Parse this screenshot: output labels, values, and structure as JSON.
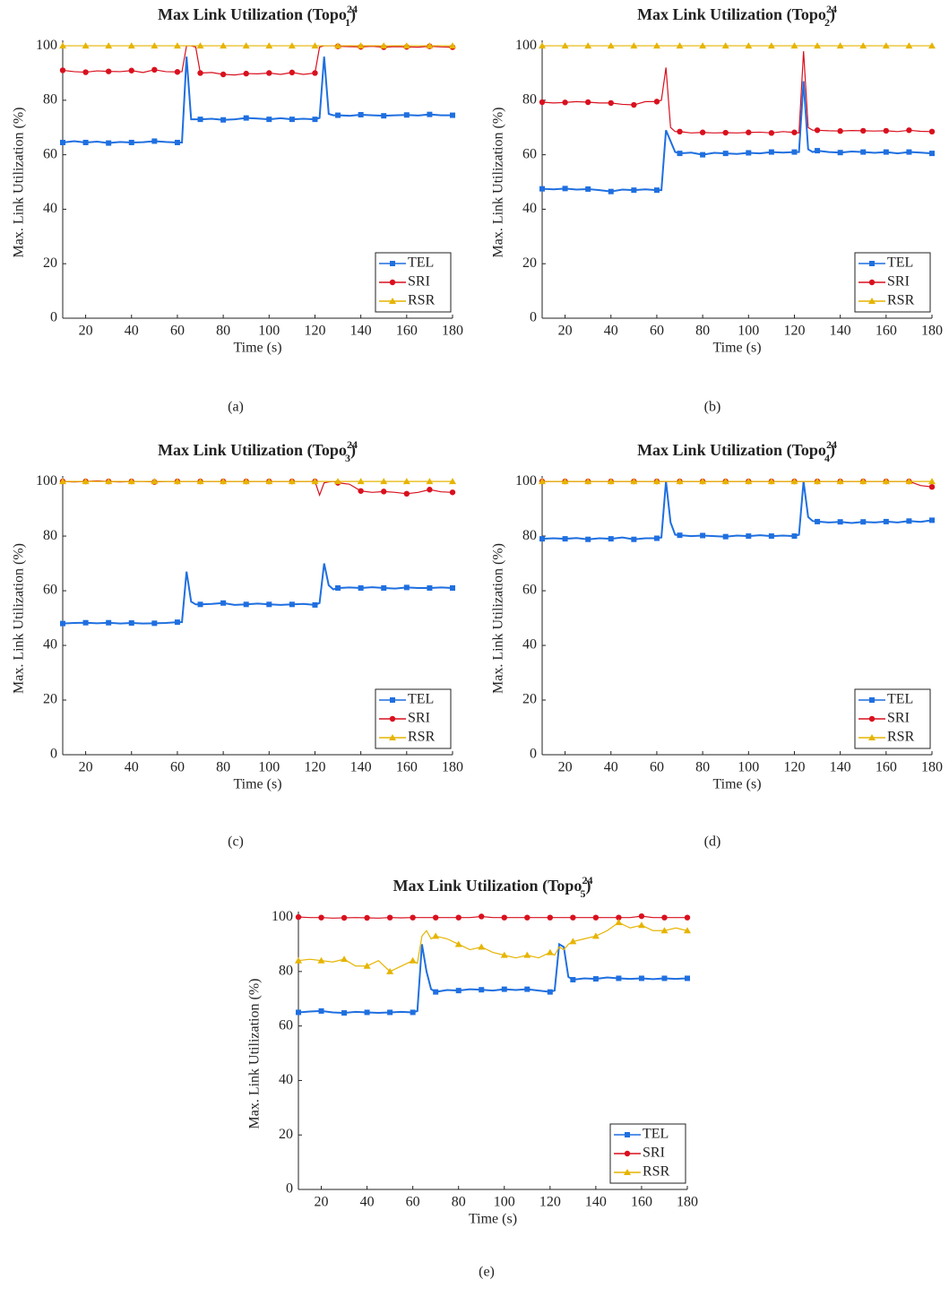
{
  "chart_data": [
    {
      "type": "line",
      "title": {
        "text": "Max Link Utilization (Topo",
        "sub": "1",
        "sup": "24",
        "close": ")"
      },
      "x_label": "Time (s)",
      "y_label": "Max. Link Utilization (%)",
      "caption": "(a)",
      "xlim": [
        10,
        180
      ],
      "ylim": [
        0,
        102
      ],
      "xticks": [
        20,
        40,
        60,
        80,
        100,
        120,
        140,
        160,
        180
      ],
      "yticks": [
        0,
        20,
        40,
        60,
        80,
        100
      ],
      "legend": "lower right",
      "x": [
        10,
        15,
        20,
        25,
        30,
        35,
        40,
        45,
        50,
        55,
        60,
        62,
        64,
        66,
        68,
        70,
        75,
        80,
        85,
        90,
        95,
        100,
        105,
        110,
        115,
        120,
        122,
        124,
        126,
        128,
        130,
        135,
        140,
        145,
        150,
        155,
        160,
        165,
        170,
        175,
        180
      ],
      "series": [
        {
          "name": "TEL",
          "color": "#1f6fe0",
          "marker": "square",
          "values": [
            64.5,
            65,
            64.5,
            64.8,
            64.3,
            64.7,
            64.5,
            64.6,
            65,
            64.7,
            64.5,
            64.5,
            96,
            73,
            73,
            73,
            73.2,
            72.8,
            73,
            73.5,
            73.3,
            73,
            73.4,
            73,
            73.2,
            73,
            73.5,
            96,
            75,
            74.5,
            74.5,
            74.3,
            74.7,
            74.5,
            74.3,
            74.5,
            74.6,
            74.4,
            74.8,
            74.5,
            74.5
          ]
        },
        {
          "name": "SRI",
          "color": "#d9101e",
          "marker": "circle",
          "values": [
            91,
            90.5,
            90.3,
            90.8,
            90.6,
            90.5,
            90.9,
            90.2,
            91.2,
            90.5,
            90.4,
            90.5,
            100,
            100,
            99.5,
            90,
            90.2,
            89.5,
            89.3,
            89.8,
            89.7,
            90,
            89.5,
            90.2,
            89.5,
            90,
            99.5,
            100,
            100,
            100,
            99.8,
            99.7,
            99.6,
            99.8,
            99.5,
            99.7,
            99.6,
            99.5,
            99.8,
            99.6,
            99.5
          ]
        },
        {
          "name": "RSR",
          "color": "#e6b400",
          "marker": "triangle",
          "values": [
            100,
            100,
            100,
            100,
            100,
            100,
            100,
            100,
            100,
            100,
            100,
            100,
            100,
            100,
            100,
            100,
            100,
            100,
            100,
            100,
            100,
            100,
            100,
            100,
            100,
            100,
            100,
            100,
            100,
            100,
            100,
            100,
            100,
            100,
            100,
            100,
            100,
            100,
            100,
            100,
            100
          ]
        }
      ]
    },
    {
      "type": "line",
      "title": {
        "text": "Max Link Utilization (Topo",
        "sub": "2",
        "sup": "24",
        "close": ")"
      },
      "x_label": "Time (s)",
      "y_label": "Max. Link Utilization (%)",
      "caption": "(b)",
      "xlim": [
        10,
        180
      ],
      "ylim": [
        0,
        102
      ],
      "xticks": [
        20,
        40,
        60,
        80,
        100,
        120,
        140,
        160,
        180
      ],
      "yticks": [
        0,
        20,
        40,
        60,
        80,
        100
      ],
      "legend": "lower right",
      "x": [
        10,
        15,
        20,
        25,
        30,
        35,
        40,
        45,
        50,
        55,
        60,
        62,
        64,
        66,
        68,
        70,
        75,
        80,
        85,
        90,
        95,
        100,
        105,
        110,
        115,
        120,
        122,
        124,
        126,
        128,
        130,
        135,
        140,
        145,
        150,
        155,
        160,
        165,
        170,
        175,
        180
      ],
      "series": [
        {
          "name": "TEL",
          "color": "#1f6fe0",
          "marker": "square",
          "values": [
            47.5,
            47.3,
            47.6,
            47.2,
            47.4,
            47,
            46.5,
            47.2,
            47,
            47.3,
            47,
            47,
            69,
            65,
            61,
            60.5,
            60.8,
            60,
            60.7,
            60.5,
            60.3,
            60.7,
            60.5,
            61,
            60.8,
            61,
            61,
            87,
            62,
            61,
            61.5,
            61,
            60.8,
            61.2,
            61,
            60.7,
            61,
            60.5,
            61,
            60.8,
            60.5
          ]
        },
        {
          "name": "SRI",
          "color": "#d9101e",
          "marker": "circle",
          "values": [
            79.3,
            79,
            79.2,
            79.5,
            79.3,
            79,
            79,
            78.5,
            78.3,
            79.5,
            79.5,
            80,
            92,
            70,
            68.5,
            68.5,
            68,
            68.2,
            68,
            68.1,
            68,
            68.2,
            68.3,
            68,
            68.5,
            68.2,
            68,
            98,
            70,
            69,
            69,
            68.8,
            68.7,
            68.9,
            68.8,
            68.7,
            68.8,
            68.5,
            69,
            68.6,
            68.5
          ]
        },
        {
          "name": "RSR",
          "color": "#e6b400",
          "marker": "triangle",
          "values": [
            100,
            100,
            100,
            100,
            100,
            100,
            100,
            100,
            100,
            100,
            100,
            100,
            100,
            100,
            100,
            100,
            100,
            100,
            100,
            100,
            100,
            100,
            100,
            100,
            100,
            100,
            100,
            100,
            100,
            100,
            100,
            100,
            100,
            100,
            100,
            100,
            100,
            100,
            100,
            100,
            100
          ]
        }
      ]
    },
    {
      "type": "line",
      "title": {
        "text": "Max Link Utilization (Topo",
        "sub": "3",
        "sup": "24",
        "close": ")"
      },
      "x_label": "Time (s)",
      "y_label": "Max. Link Utilization (%)",
      "caption": "(c)",
      "xlim": [
        10,
        180
      ],
      "ylim": [
        0,
        102
      ],
      "xticks": [
        20,
        40,
        60,
        80,
        100,
        120,
        140,
        160,
        180
      ],
      "yticks": [
        0,
        20,
        40,
        60,
        80,
        100
      ],
      "legend": "lower right",
      "x": [
        10,
        15,
        20,
        25,
        30,
        35,
        40,
        45,
        50,
        55,
        60,
        62,
        64,
        66,
        68,
        70,
        75,
        80,
        85,
        90,
        95,
        100,
        105,
        110,
        115,
        120,
        122,
        124,
        126,
        128,
        130,
        135,
        140,
        145,
        150,
        155,
        160,
        165,
        170,
        175,
        180
      ],
      "series": [
        {
          "name": "TEL",
          "color": "#1f6fe0",
          "marker": "square",
          "values": [
            48,
            48.2,
            48.3,
            48.1,
            48.3,
            48,
            48.2,
            48,
            48.1,
            48.2,
            48.5,
            48.5,
            67,
            56,
            55,
            55,
            55.2,
            55.5,
            54.8,
            55,
            55.3,
            55,
            54.8,
            55,
            55.2,
            54.8,
            55.5,
            70,
            62,
            60.5,
            61,
            61.2,
            61,
            61.3,
            61,
            60.8,
            61.2,
            61,
            61,
            61.2,
            61
          ]
        },
        {
          "name": "SRI",
          "color": "#d9101e",
          "marker": "circle",
          "values": [
            100,
            99.8,
            100,
            100.2,
            100,
            99.8,
            100,
            100,
            99.8,
            100,
            100,
            100,
            100,
            100,
            100,
            100,
            100,
            100,
            100,
            100,
            100,
            100,
            100,
            100,
            100,
            100,
            95,
            99.5,
            99.8,
            100,
            99.5,
            99,
            96.5,
            96,
            96.3,
            96,
            95.5,
            96,
            97,
            96.2,
            96
          ]
        },
        {
          "name": "RSR",
          "color": "#e6b400",
          "marker": "triangle",
          "values": [
            100,
            100,
            100,
            100,
            100,
            100,
            100,
            100,
            100,
            100,
            100,
            100,
            100,
            100,
            100,
            100,
            100,
            100,
            100,
            100,
            100,
            100,
            100,
            100,
            100,
            100,
            100,
            100,
            100,
            100,
            100,
            100,
            100,
            100,
            100,
            100,
            100,
            100,
            100,
            100,
            100
          ]
        }
      ]
    },
    {
      "type": "line",
      "title": {
        "text": "Max Link Utilization (Topo",
        "sub": "4",
        "sup": "24",
        "close": ")"
      },
      "x_label": "Time (s)",
      "y_label": "Max. Link Utilization (%)",
      "caption": "(d)",
      "xlim": [
        10,
        180
      ],
      "ylim": [
        0,
        102
      ],
      "xticks": [
        20,
        40,
        60,
        80,
        100,
        120,
        140,
        160,
        180
      ],
      "yticks": [
        0,
        20,
        40,
        60,
        80,
        100
      ],
      "legend": "lower right",
      "x": [
        10,
        15,
        20,
        25,
        30,
        35,
        40,
        45,
        50,
        55,
        60,
        62,
        64,
        66,
        68,
        70,
        75,
        80,
        85,
        90,
        95,
        100,
        105,
        110,
        115,
        120,
        122,
        124,
        126,
        128,
        130,
        135,
        140,
        145,
        150,
        155,
        160,
        165,
        170,
        175,
        180
      ],
      "series": [
        {
          "name": "TEL",
          "color": "#1f6fe0",
          "marker": "square",
          "values": [
            79,
            79.2,
            79,
            79.3,
            78.8,
            79.2,
            79,
            79.5,
            78.8,
            79.2,
            79.2,
            79.5,
            100,
            85,
            80.5,
            80.3,
            80,
            80.2,
            80,
            79.8,
            80.2,
            80,
            80.3,
            80,
            80.2,
            80,
            80.5,
            100,
            87,
            85.5,
            85.3,
            85,
            85.2,
            84.8,
            85.2,
            85,
            85.3,
            85,
            85.5,
            85.2,
            85.8
          ]
        },
        {
          "name": "SRI",
          "color": "#d9101e",
          "marker": "circle",
          "values": [
            100,
            100,
            100,
            100,
            100,
            100,
            100,
            100,
            100,
            100,
            100,
            100,
            100,
            100,
            100,
            100,
            100,
            100,
            100,
            100,
            100,
            100,
            100,
            100,
            100,
            100,
            100,
            100,
            100,
            100,
            100,
            100,
            100,
            100,
            100,
            100,
            100,
            100,
            100,
            98.5,
            98
          ]
        },
        {
          "name": "RSR",
          "color": "#e6b400",
          "marker": "triangle",
          "values": [
            100,
            100,
            100,
            100,
            100,
            100,
            100,
            100,
            100,
            100,
            100,
            100,
            100,
            100,
            100,
            100,
            100,
            100,
            100,
            100,
            100,
            100,
            100,
            100,
            100,
            100,
            100,
            100,
            100,
            100,
            100,
            100,
            100,
            100,
            100,
            100,
            100,
            100,
            100,
            100,
            100
          ]
        }
      ]
    },
    {
      "type": "line",
      "title": {
        "text": "Max Link Utilization (Topo",
        "sub": "5",
        "sup": "24",
        "close": ")"
      },
      "x_label": "Time (s)",
      "y_label": "Max. Link Utilization (%)",
      "caption": "(e)",
      "xlim": [
        10,
        180
      ],
      "ylim": [
        0,
        102
      ],
      "xticks": [
        20,
        40,
        60,
        80,
        100,
        120,
        140,
        160,
        180
      ],
      "yticks": [
        0,
        20,
        40,
        60,
        80,
        100
      ],
      "legend": "lower right",
      "x": [
        10,
        15,
        20,
        25,
        30,
        35,
        40,
        45,
        50,
        55,
        60,
        62,
        64,
        66,
        68,
        70,
        75,
        80,
        85,
        90,
        95,
        100,
        105,
        110,
        115,
        120,
        122,
        124,
        126,
        128,
        130,
        135,
        140,
        145,
        150,
        155,
        160,
        165,
        170,
        175,
        180
      ],
      "series": [
        {
          "name": "TEL",
          "color": "#1f6fe0",
          "marker": "square",
          "values": [
            65,
            65.3,
            65.5,
            65,
            64.8,
            65.2,
            65,
            64.8,
            65,
            65.2,
            65,
            65.5,
            90,
            80,
            73.5,
            72.5,
            73.2,
            73,
            73.5,
            73.3,
            73,
            73.5,
            73.2,
            73.5,
            73,
            72.5,
            73,
            90,
            89,
            78,
            77,
            77.5,
            77.3,
            77.8,
            77.5,
            77.3,
            77.5,
            77.2,
            77.5,
            77.3,
            77.5
          ]
        },
        {
          "name": "SRI",
          "color": "#d9101e",
          "marker": "circle",
          "values": [
            100,
            99.8,
            99.8,
            99.6,
            99.7,
            99.8,
            99.7,
            99.6,
            99.8,
            99.7,
            99.8,
            99.8,
            99.8,
            99.8,
            99.8,
            99.8,
            99.8,
            99.8,
            99.8,
            100.2,
            99.8,
            99.8,
            99.8,
            99.8,
            99.8,
            99.8,
            99.8,
            99.8,
            99.8,
            99.8,
            99.8,
            99.8,
            99.8,
            99.8,
            99.8,
            99.8,
            100.3,
            99.8,
            99.8,
            99.8,
            99.8
          ]
        },
        {
          "name": "RSR",
          "color": "#e6b400",
          "marker": "triangle",
          "values": [
            84,
            84.5,
            84,
            83.5,
            84.5,
            82,
            82,
            84,
            80,
            82,
            84,
            83,
            93,
            95,
            92,
            93,
            92,
            90,
            88,
            89,
            87,
            86,
            85,
            86,
            85,
            87,
            86,
            89,
            88,
            90,
            91,
            92,
            93,
            95,
            98,
            96,
            97,
            95,
            95,
            96,
            95
          ]
        }
      ]
    }
  ]
}
